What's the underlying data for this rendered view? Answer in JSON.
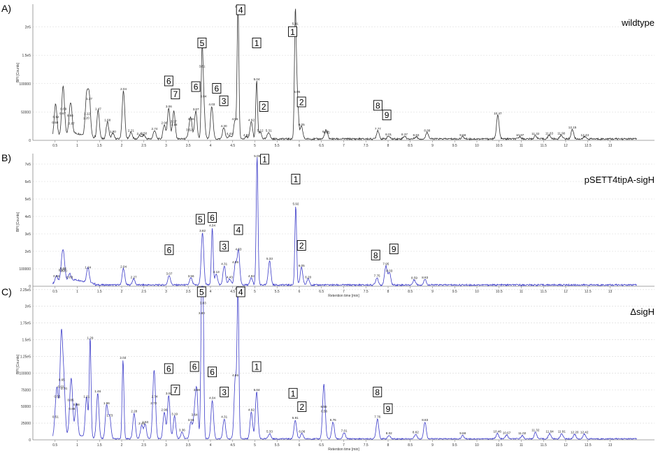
{
  "figure": {
    "x_axis_label": "Retention time [min]",
    "y_axis_label": "BPI [Counts]"
  },
  "chart_data": [
    {
      "type": "line",
      "panel_label": "A)",
      "title": "wildtype",
      "color": "#333333",
      "xlim": [
        0,
        14
      ],
      "ylim": [
        0,
        240000
      ],
      "x_ticks": [
        0.5,
        1,
        1.5,
        2,
        2.5,
        3,
        3.5,
        4,
        4.5,
        5,
        5.5,
        6,
        6.5,
        7,
        7.5,
        8,
        8.5,
        9,
        9.5,
        10,
        10.5,
        11,
        11.5,
        12,
        12.5,
        13
      ],
      "y_ticks": [
        {
          "v": 0,
          "t": "0"
        },
        {
          "v": 50000,
          "t": "50000"
        },
        {
          "v": 100000,
          "t": "100000"
        },
        {
          "v": 150000,
          "t": "1.5e5"
        },
        {
          "v": 200000,
          "t": "2e5"
        }
      ],
      "baseline": 5000,
      "peaks": [
        {
          "x": 0.52,
          "y": 36000,
          "label": "0.52"
        },
        {
          "x": 0.5,
          "y": 26000,
          "label": "0.50"
        },
        {
          "x": 0.67,
          "y": 42000,
          "label": "0.67"
        },
        {
          "x": 0.69,
          "y": 50000,
          "label": "0.69"
        },
        {
          "x": 0.84,
          "y": 38000,
          "label": "0.84"
        },
        {
          "x": 0.87,
          "y": 24000,
          "label": "0.87"
        },
        {
          "x": 1.2,
          "y": 34000,
          "label": "1.20"
        },
        {
          "x": 1.22,
          "y": 41000,
          "label": "1.22"
        },
        {
          "x": 1.27,
          "y": 68000,
          "label": "1.27"
        },
        {
          "x": 1.47,
          "y": 50000,
          "label": "1.47"
        },
        {
          "x": 1.68,
          "y": 30000,
          "label": "1.68"
        },
        {
          "x": 1.8,
          "y": 10000,
          "label": "1.80"
        },
        {
          "x": 2.04,
          "y": 85000,
          "label": "2.04"
        },
        {
          "x": 2.21,
          "y": 12000,
          "label": "2.21"
        },
        {
          "x": 2.41,
          "y": 6000,
          "label": "2.41"
        },
        {
          "x": 2.5,
          "y": 7000,
          "label": "2.50"
        },
        {
          "x": 2.74,
          "y": 15000,
          "label": "2.74"
        },
        {
          "x": 2.96,
          "y": 25000,
          "label": "2.96"
        },
        {
          "x": 3.06,
          "y": 54000,
          "label": "3.06"
        },
        {
          "x": 3.17,
          "y": 28000,
          "label": "3.17"
        },
        {
          "x": 3.18,
          "y": 22000,
          "label": "3.18"
        },
        {
          "x": 3.52,
          "y": 13000,
          "label": "3.52"
        },
        {
          "x": 3.56,
          "y": 32000,
          "label": "3.56"
        },
        {
          "x": 3.67,
          "y": 49000,
          "label": "3.67"
        },
        {
          "x": 3.81,
          "y": 125000,
          "label": "3.81"
        },
        {
          "x": 3.84,
          "y": 72000,
          "label": "3.84"
        },
        {
          "x": 4.03,
          "y": 58000,
          "label": "4.03"
        },
        {
          "x": 4.3,
          "y": 20000,
          "label": "4.30"
        },
        {
          "x": 4.43,
          "y": 6000,
          "label": "4.43"
        },
        {
          "x": 4.55,
          "y": 32000,
          "label": "4.55"
        },
        {
          "x": 4.62,
          "y": 235000,
          "label": "4.62"
        },
        {
          "x": 4.81,
          "y": 4000,
          "label": "4.81"
        },
        {
          "x": 4.92,
          "y": 30000,
          "label": "4.92"
        },
        {
          "x": 5.04,
          "y": 102000,
          "label": "5.04"
        },
        {
          "x": 5.12,
          "y": 12000,
          "label": "5.12"
        },
        {
          "x": 5.31,
          "y": 12000,
          "label": "5.31"
        },
        {
          "x": 5.91,
          "y": 200000,
          "label": "5.91"
        },
        {
          "x": 5.95,
          "y": 80000,
          "label": "5.95"
        },
        {
          "x": 6.05,
          "y": 22000,
          "label": "6.05"
        },
        {
          "x": 6.59,
          "y": 10000,
          "label": "6.59"
        },
        {
          "x": 6.62,
          "y": 8000,
          "label": "6.62"
        },
        {
          "x": 7.77,
          "y": 15000,
          "label": "7.77"
        },
        {
          "x": 8.01,
          "y": 5000,
          "label": "8.01"
        },
        {
          "x": 8.37,
          "y": 5000,
          "label": "8.37"
        },
        {
          "x": 8.63,
          "y": 4000,
          "label": "8.63"
        },
        {
          "x": 8.88,
          "y": 12000,
          "label": "8.88"
        },
        {
          "x": 9.68,
          "y": 4000,
          "label": "9.68"
        },
        {
          "x": 10.47,
          "y": 42000,
          "label": "10.47"
        },
        {
          "x": 10.97,
          "y": 4000,
          "label": "10.97"
        },
        {
          "x": 11.32,
          "y": 6000,
          "label": "11.32"
        },
        {
          "x": 11.63,
          "y": 7000,
          "label": "11.63"
        },
        {
          "x": 11.9,
          "y": 7000,
          "label": "11.90"
        },
        {
          "x": 12.15,
          "y": 17000,
          "label": "12.15"
        },
        {
          "x": 12.43,
          "y": 4000,
          "label": "12.43"
        }
      ],
      "annotations": [
        {
          "text": "4",
          "x": 4.68,
          "y": 235000
        },
        {
          "text": "5",
          "x": 3.81,
          "y": 152000
        },
        {
          "text": "1",
          "x": 5.04,
          "y": 152000
        },
        {
          "text": "1",
          "x": 5.85,
          "y": 172000
        },
        {
          "text": "6",
          "x": 3.06,
          "y": 85000
        },
        {
          "text": "7",
          "x": 3.21,
          "y": 62000
        },
        {
          "text": "6",
          "x": 3.67,
          "y": 75000
        },
        {
          "text": "6",
          "x": 4.14,
          "y": 72000
        },
        {
          "text": "3",
          "x": 4.3,
          "y": 50000
        },
        {
          "text": "2",
          "x": 5.2,
          "y": 40000
        },
        {
          "text": "2",
          "x": 6.05,
          "y": 48000
        },
        {
          "text": "8",
          "x": 7.77,
          "y": 42000
        },
        {
          "text": "9",
          "x": 7.97,
          "y": 25000
        }
      ]
    },
    {
      "type": "line",
      "panel_label": "B)",
      "title": "pSETT4tipA-sigH",
      "color": "#3d3dc9",
      "xlim": [
        0,
        14
      ],
      "ylim": [
        0,
        760000
      ],
      "x_ticks": [
        0.5,
        1,
        1.5,
        2,
        2.5,
        3,
        3.5,
        4,
        4.5,
        5,
        5.5,
        6,
        6.5,
        7,
        7.5,
        8,
        8.5,
        9,
        9.5,
        10,
        10.5,
        11,
        11.5,
        12,
        12.5,
        13
      ],
      "y_ticks": [
        {
          "v": 0,
          "t": "0"
        },
        {
          "v": 100000,
          "t": "100000"
        },
        {
          "v": 200000,
          "t": "2e5"
        },
        {
          "v": 300000,
          "t": "3e5"
        },
        {
          "v": 400000,
          "t": "4e5"
        },
        {
          "v": 500000,
          "t": "5e5"
        },
        {
          "v": 600000,
          "t": "6e5"
        },
        {
          "v": 700000,
          "t": "7e5"
        }
      ],
      "baseline": 15000,
      "peaks": [
        {
          "x": 0.53,
          "y": 40000,
          "label": "0.53"
        },
        {
          "x": 0.65,
          "y": 75000,
          "label": "0.65"
        },
        {
          "x": 0.68,
          "y": 85000,
          "label": "0.68"
        },
        {
          "x": 0.7,
          "y": 70000,
          "label": "0.70"
        },
        {
          "x": 0.83,
          "y": 35000,
          "label": "0.83"
        },
        {
          "x": 1.24,
          "y": 90000,
          "label": "1.24"
        },
        {
          "x": 2.04,
          "y": 95000,
          "label": "2.04"
        },
        {
          "x": 2.27,
          "y": 35000,
          "label": "2.27"
        },
        {
          "x": 3.07,
          "y": 55000,
          "label": "3.07"
        },
        {
          "x": 3.56,
          "y": 40000,
          "label": "3.56"
        },
        {
          "x": 3.82,
          "y": 300000,
          "label": "3.82"
        },
        {
          "x": 4.04,
          "y": 330000,
          "label": "4.04"
        },
        {
          "x": 4.13,
          "y": 65000,
          "label": "4.13"
        },
        {
          "x": 4.31,
          "y": 110000,
          "label": "4.31"
        },
        {
          "x": 4.43,
          "y": 35000,
          "label": "4.43"
        },
        {
          "x": 4.56,
          "y": 120000,
          "label": "4.56"
        },
        {
          "x": 4.63,
          "y": 195000,
          "label": "4.63"
        },
        {
          "x": 4.92,
          "y": 40000,
          "label": "4.92"
        },
        {
          "x": 5.05,
          "y": 735000,
          "label": "5.05"
        },
        {
          "x": 5.33,
          "y": 140000,
          "label": "5.33"
        },
        {
          "x": 5.92,
          "y": 455000,
          "label": "5.92"
        },
        {
          "x": 6.05,
          "y": 100000,
          "label": "6.05"
        },
        {
          "x": 6.2,
          "y": 35000,
          "label": "6.20"
        },
        {
          "x": 7.75,
          "y": 42000,
          "label": "7.75"
        },
        {
          "x": 7.95,
          "y": 110000,
          "label": "7.95"
        },
        {
          "x": 8.03,
          "y": 70000,
          "label": "8.03"
        },
        {
          "x": 8.59,
          "y": 30000,
          "label": "8.59"
        },
        {
          "x": 8.83,
          "y": 32000,
          "label": "8.83"
        }
      ],
      "annotations": [
        {
          "text": "1",
          "x": 5.22,
          "y": 720000
        },
        {
          "text": "1",
          "x": 5.92,
          "y": 550000
        },
        {
          "text": "2",
          "x": 6.05,
          "y": 170000
        },
        {
          "text": "5",
          "x": 3.77,
          "y": 320000
        },
        {
          "text": "6",
          "x": 4.04,
          "y": 330000
        },
        {
          "text": "4",
          "x": 4.63,
          "y": 260000
        },
        {
          "text": "3",
          "x": 4.31,
          "y": 165000
        },
        {
          "text": "6",
          "x": 3.07,
          "y": 145000
        },
        {
          "text": "8",
          "x": 7.72,
          "y": 115000
        },
        {
          "text": "9",
          "x": 8.13,
          "y": 150000
        }
      ]
    },
    {
      "type": "line",
      "panel_label": "C)",
      "title": "ΔsigH",
      "color": "#3d3dc9",
      "xlim": [
        0,
        14
      ],
      "ylim": [
        0,
        230000
      ],
      "x_ticks": [
        0.5,
        1,
        1.5,
        2,
        2.5,
        3,
        3.5,
        4,
        4.5,
        5,
        5.5,
        6,
        6.5,
        7,
        7.5,
        8,
        8.5,
        9,
        9.5,
        10,
        10.5,
        11,
        11.5,
        12,
        12.5,
        13
      ],
      "y_ticks": [
        {
          "v": 0,
          "t": "0"
        },
        {
          "v": 25000,
          "t": "25000"
        },
        {
          "v": 50000,
          "t": "50000"
        },
        {
          "v": 75000,
          "t": "75000"
        },
        {
          "v": 100000,
          "t": "100000"
        },
        {
          "v": 125000,
          "t": "1.25e5"
        },
        {
          "v": 150000,
          "t": "1.5e5"
        },
        {
          "v": 175000,
          "t": "1.75e5"
        },
        {
          "v": 200000,
          "t": "2e5"
        },
        {
          "v": 225000,
          "t": "2.25e5"
        }
      ],
      "baseline": 3000,
      "peaks": [
        {
          "x": 0.51,
          "y": 30000,
          "label": "0.51"
        },
        {
          "x": 0.55,
          "y": 60000,
          "label": "0.55"
        },
        {
          "x": 0.63,
          "y": 75000,
          "label": "0.63"
        },
        {
          "x": 0.65,
          "y": 85000,
          "label": "0.65"
        },
        {
          "x": 0.7,
          "y": 72000,
          "label": "0.70"
        },
        {
          "x": 0.85,
          "y": 55000,
          "label": "0.85"
        },
        {
          "x": 0.98,
          "y": 48000,
          "label": "0.98"
        },
        {
          "x": 0.88,
          "y": 42000,
          "label": "0.88"
        },
        {
          "x": 1.21,
          "y": 60000,
          "label": "1.21"
        },
        {
          "x": 1.29,
          "y": 148000,
          "label": "1.29"
        },
        {
          "x": 1.46,
          "y": 68000,
          "label": "1.46"
        },
        {
          "x": 1.66,
          "y": 50000,
          "label": "1.66"
        },
        {
          "x": 1.73,
          "y": 32000,
          "label": "1.73"
        },
        {
          "x": 2.03,
          "y": 118000,
          "label": "2.03"
        },
        {
          "x": 2.28,
          "y": 38000,
          "label": "2.28"
        },
        {
          "x": 2.45,
          "y": 20000,
          "label": "2.45"
        },
        {
          "x": 2.53,
          "y": 22000,
          "label": "2.53"
        },
        {
          "x": 2.72,
          "y": 50000,
          "label": "2.72"
        },
        {
          "x": 2.74,
          "y": 60000,
          "label": "2.74"
        },
        {
          "x": 2.96,
          "y": 40000,
          "label": "2.96"
        },
        {
          "x": 3.06,
          "y": 65000,
          "label": "3.06"
        },
        {
          "x": 3.19,
          "y": 34000,
          "label": "3.19"
        },
        {
          "x": 3.36,
          "y": 10000,
          "label": "3.36"
        },
        {
          "x": 3.56,
          "y": 25000,
          "label": "3.56"
        },
        {
          "x": 3.64,
          "y": 33000,
          "label": "3.64"
        },
        {
          "x": 3.69,
          "y": 70000,
          "label": "3.69"
        },
        {
          "x": 3.8,
          "y": 185000,
          "label": "3.80"
        },
        {
          "x": 3.83,
          "y": 200000,
          "label": "3.83"
        },
        {
          "x": 4.04,
          "y": 58000,
          "label": "4.04"
        },
        {
          "x": 4.31,
          "y": 30000,
          "label": "4.31"
        },
        {
          "x": 4.56,
          "y": 92000,
          "label": "4.56"
        },
        {
          "x": 4.62,
          "y": 222000,
          "label": "4.62"
        },
        {
          "x": 4.92,
          "y": 40000,
          "label": "4.92"
        },
        {
          "x": 5.04,
          "y": 70000,
          "label": "5.04"
        },
        {
          "x": 5.33,
          "y": 8000,
          "label": "5.33"
        },
        {
          "x": 5.91,
          "y": 28000,
          "label": "5.91"
        },
        {
          "x": 6.06,
          "y": 8000,
          "label": "6.06"
        },
        {
          "x": 6.55,
          "y": 45000,
          "label": "6.55"
        },
        {
          "x": 6.56,
          "y": 38000,
          "label": "6.56"
        },
        {
          "x": 6.76,
          "y": 25000,
          "label": "6.76"
        },
        {
          "x": 7.01,
          "y": 9000,
          "label": "7.01"
        },
        {
          "x": 7.76,
          "y": 30000,
          "label": "7.76"
        },
        {
          "x": 8.02,
          "y": 5000,
          "label": "8.02"
        },
        {
          "x": 8.62,
          "y": 7000,
          "label": "8.62"
        },
        {
          "x": 8.83,
          "y": 25000,
          "label": "8.83"
        },
        {
          "x": 9.68,
          "y": 5000,
          "label": "9.68"
        },
        {
          "x": 10.46,
          "y": 8000,
          "label": "10.46"
        },
        {
          "x": 10.67,
          "y": 6000,
          "label": "10.67"
        },
        {
          "x": 11.02,
          "y": 5000,
          "label": "11.02"
        },
        {
          "x": 11.32,
          "y": 10000,
          "label": "11.32"
        },
        {
          "x": 11.64,
          "y": 8000,
          "label": "11.64"
        },
        {
          "x": 11.91,
          "y": 8000,
          "label": "11.91"
        },
        {
          "x": 12.2,
          "y": 7000,
          "label": "12.20"
        },
        {
          "x": 12.42,
          "y": 7000,
          "label": "12.42"
        }
      ],
      "annotations": [
        {
          "text": "5",
          "x": 3.8,
          "y": 225000
        },
        {
          "text": "4",
          "x": 4.68,
          "y": 222000
        },
        {
          "text": "6",
          "x": 3.06,
          "y": 90000
        },
        {
          "text": "6",
          "x": 3.64,
          "y": 93000
        },
        {
          "text": "7",
          "x": 3.21,
          "y": 58000
        },
        {
          "text": "6",
          "x": 4.04,
          "y": 85000
        },
        {
          "text": "3",
          "x": 4.31,
          "y": 55000
        },
        {
          "text": "1",
          "x": 5.04,
          "y": 93000
        },
        {
          "text": "1",
          "x": 5.86,
          "y": 53000
        },
        {
          "text": "2",
          "x": 6.06,
          "y": 33000
        },
        {
          "text": "8",
          "x": 7.76,
          "y": 55000
        },
        {
          "text": "9",
          "x": 8.0,
          "y": 30000
        }
      ]
    }
  ]
}
